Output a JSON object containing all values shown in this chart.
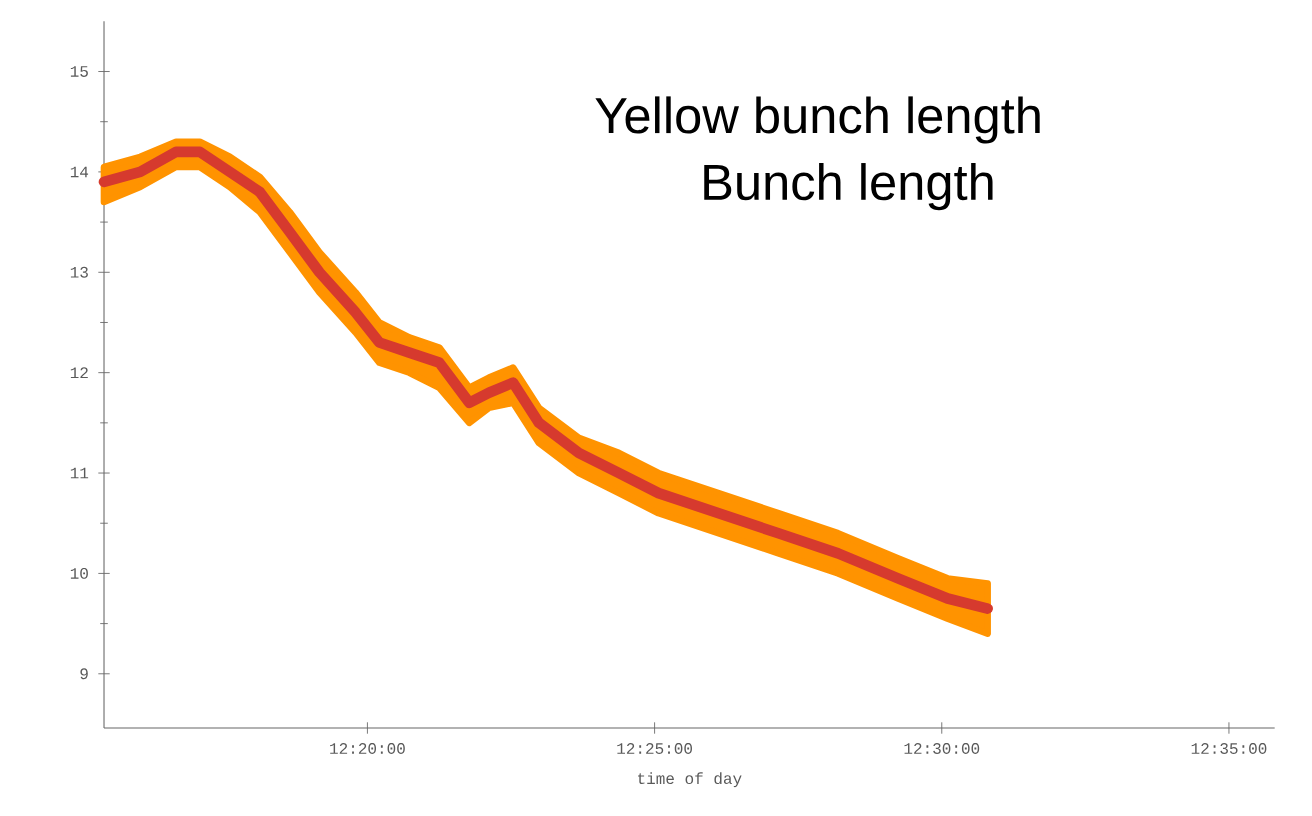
{
  "chart_data": {
    "type": "line",
    "title": "Yellow bunch length",
    "subtitle": "Bunch length",
    "xlabel": "time of day",
    "xlim": [
      12.2569,
      12.5966
    ],
    "ylim": [
      8.46,
      15.5
    ],
    "xticks": [
      {
        "value": 12.333333,
        "label": "12:20:00"
      },
      {
        "value": 12.416667,
        "label": "12:25:00"
      },
      {
        "value": 12.5,
        "label": "12:30:00"
      },
      {
        "value": 12.583333,
        "label": "12:35:00"
      }
    ],
    "yticks": [
      9,
      10,
      11,
      12,
      13,
      14,
      15
    ],
    "grid": false,
    "marker": "none",
    "line_style": "solid",
    "series": [
      {
        "color": "#d63a2e",
        "x": [
          12.2569,
          12.2674,
          12.2778,
          12.2847,
          12.2934,
          12.3021,
          12.3108,
          12.3194,
          12.3299,
          12.3368,
          12.3455,
          12.3542,
          12.3629,
          12.3686,
          12.3756,
          12.3831,
          12.3947,
          12.4063,
          12.4178,
          12.4352,
          12.4526,
          12.4699,
          12.4873,
          12.5017,
          12.5133
        ],
        "values": [
          13.9,
          14.0,
          14.2,
          14.2,
          14.0,
          13.8,
          13.4,
          13.0,
          12.6,
          12.3,
          12.2,
          12.1,
          11.7,
          11.8,
          11.9,
          11.5,
          11.2,
          11.0,
          10.8,
          10.6,
          10.4,
          10.2,
          9.95,
          9.75,
          9.65
        ],
        "lower": [
          13.7,
          13.85,
          14.05,
          14.05,
          13.85,
          13.6,
          13.2,
          12.8,
          12.4,
          12.1,
          12.0,
          11.85,
          11.5,
          11.65,
          11.7,
          11.3,
          11.0,
          10.8,
          10.6,
          10.4,
          10.2,
          10.0,
          9.75,
          9.55,
          9.4
        ],
        "upper": [
          14.05,
          14.15,
          14.3,
          14.3,
          14.15,
          13.95,
          13.6,
          13.2,
          12.8,
          12.5,
          12.35,
          12.25,
          11.85,
          11.95,
          12.05,
          11.65,
          11.35,
          11.2,
          11.0,
          10.8,
          10.6,
          10.4,
          10.15,
          9.95,
          9.9
        ]
      }
    ]
  }
}
